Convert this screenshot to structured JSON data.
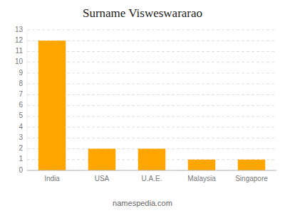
{
  "chart_data": {
    "type": "bar",
    "title": "Surname Visweswararao",
    "categories": [
      "India",
      "USA",
      "U.A.E.",
      "Malaysia",
      "Singapore"
    ],
    "values": [
      12,
      2,
      2,
      1,
      1
    ],
    "color": "#FFA500",
    "ylim": [
      0,
      13
    ],
    "yticks": [
      0,
      1,
      2,
      3,
      4,
      5,
      6,
      7,
      8,
      9,
      10,
      11,
      12,
      13
    ],
    "grid": true,
    "footer": "namespedia.com"
  }
}
